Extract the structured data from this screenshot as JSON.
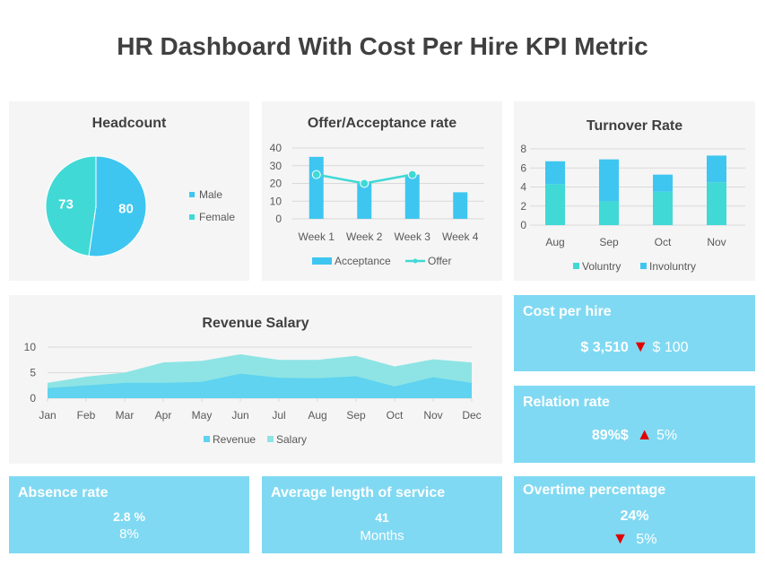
{
  "title": "HR Dashboard With Cost Per Hire KPI Metric",
  "colors": {
    "male": "#3ec6f0",
    "female": "#40d9d6",
    "acceptance": "#3ec6f0",
    "offer": "#40d9d6",
    "voluntry": "#40d9d6",
    "involuntry": "#3ec6f0",
    "revenue": "#5fd3ef",
    "salary": "#8ee4e4",
    "kpi_bg": "#80d9f2",
    "arrow": "#e00000"
  },
  "headcount": {
    "title": "Headcount",
    "chart_data": {
      "type": "pie",
      "categories": [
        "Male",
        "Female"
      ],
      "values": [
        80,
        73
      ]
    }
  },
  "offer": {
    "title": "Offer/Acceptance rate",
    "chart_data": {
      "type": "bar",
      "categories": [
        "Week 1",
        "Week 2",
        "Week 3",
        "Week 4"
      ],
      "ylim": [
        0,
        40
      ],
      "yticks": [
        0,
        10,
        20,
        30,
        40
      ],
      "series": [
        {
          "name": "Acceptance",
          "type": "bar",
          "values": [
            35,
            20,
            25,
            15
          ]
        },
        {
          "name": "Offer",
          "type": "line",
          "values": [
            25,
            20,
            25,
            null
          ]
        }
      ],
      "legend": "bottom"
    }
  },
  "turnover": {
    "title": "Turnover Rate",
    "chart_data": {
      "type": "bar",
      "stacked": true,
      "categories": [
        "Aug",
        "Sep",
        "Oct",
        "Nov"
      ],
      "ylim": [
        0,
        8
      ],
      "yticks": [
        0,
        2,
        4,
        6,
        8
      ],
      "series": [
        {
          "name": "Voluntry",
          "values": [
            4.3,
            2.5,
            3.5,
            4.5
          ]
        },
        {
          "name": "Involuntry",
          "values": [
            2.4,
            4.4,
            1.8,
            2.8
          ]
        }
      ],
      "legend": "bottom"
    }
  },
  "revenue": {
    "title": "Revenue Salary",
    "chart_data": {
      "type": "area",
      "categories": [
        "Jan",
        "Feb",
        "Mar",
        "Apr",
        "May",
        "Jun",
        "Jul",
        "Aug",
        "Sep",
        "Oct",
        "Nov",
        "Dec"
      ],
      "ylim": [
        0,
        10
      ],
      "yticks": [
        0,
        5,
        10
      ],
      "series": [
        {
          "name": "Revenue",
          "values": [
            2,
            2.5,
            3,
            3,
            3.2,
            4.8,
            4,
            3.9,
            4.3,
            2.3,
            4.1,
            3
          ]
        },
        {
          "name": "Salary",
          "values": [
            3,
            4.2,
            5,
            7,
            7.3,
            8.6,
            7.5,
            7.5,
            8.3,
            6.2,
            7.6,
            7
          ]
        }
      ],
      "legend": "bottom"
    }
  },
  "kpis": {
    "cost": {
      "title": "Cost per hire",
      "value": "$ 3,510",
      "arrow": "▼",
      "change": "$ 100"
    },
    "relation": {
      "title": "Relation rate",
      "value": "89%$",
      "arrow": "▲",
      "change": "5%"
    },
    "absence": {
      "title": "Absence rate",
      "value": "2.8 %",
      "sub": "8%"
    },
    "avg": {
      "title": "Average length of service",
      "value": "41",
      "sub": "Months"
    },
    "overtime": {
      "title": "Overtime percentage",
      "value": "24%",
      "arrow": "▼",
      "change": "5%"
    }
  }
}
